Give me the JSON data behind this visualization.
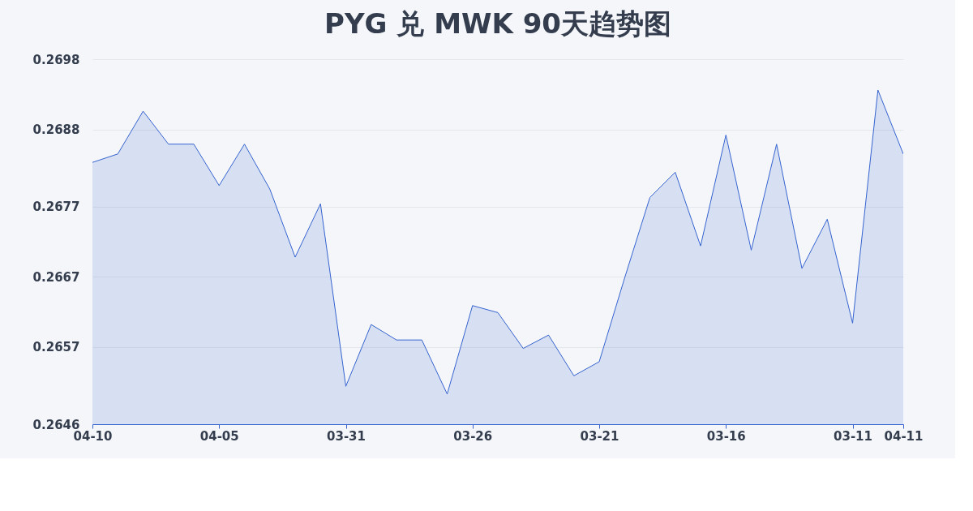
{
  "chart_data": {
    "type": "area",
    "title": "PYG 兑 MWK 90天趋势图",
    "categories": [
      "04-10",
      null,
      null,
      null,
      null,
      "04-05",
      null,
      null,
      null,
      null,
      "03-31",
      null,
      null,
      null,
      null,
      "03-26",
      null,
      null,
      null,
      null,
      "03-21",
      null,
      null,
      null,
      null,
      "03-16",
      null,
      null,
      null,
      null,
      "03-11",
      null,
      "04-11"
    ],
    "series": [
      {
        "color": "#3563d0",
        "values": [
          0.26833,
          0.26845,
          0.26906,
          0.26859,
          0.26859,
          0.268,
          0.26859,
          0.26795,
          0.26698,
          0.26774,
          0.26514,
          0.26602,
          0.2658,
          0.2658,
          0.26503,
          0.26629,
          0.26619,
          0.26568,
          0.26587,
          0.26529,
          0.26549,
          0.26668,
          0.26783,
          0.26819,
          0.26714,
          0.26872,
          0.26708,
          0.26859,
          0.26682,
          0.26752,
          0.26604,
          0.26936,
          0.26845
        ]
      }
    ],
    "ylim": [
      0.2646,
      0.2698
    ],
    "yticks": [
      0.2646,
      0.2657,
      0.2667,
      0.2677,
      0.2688,
      0.2698
    ],
    "grid": "y",
    "marker": "none",
    "line_style": "solid"
  }
}
